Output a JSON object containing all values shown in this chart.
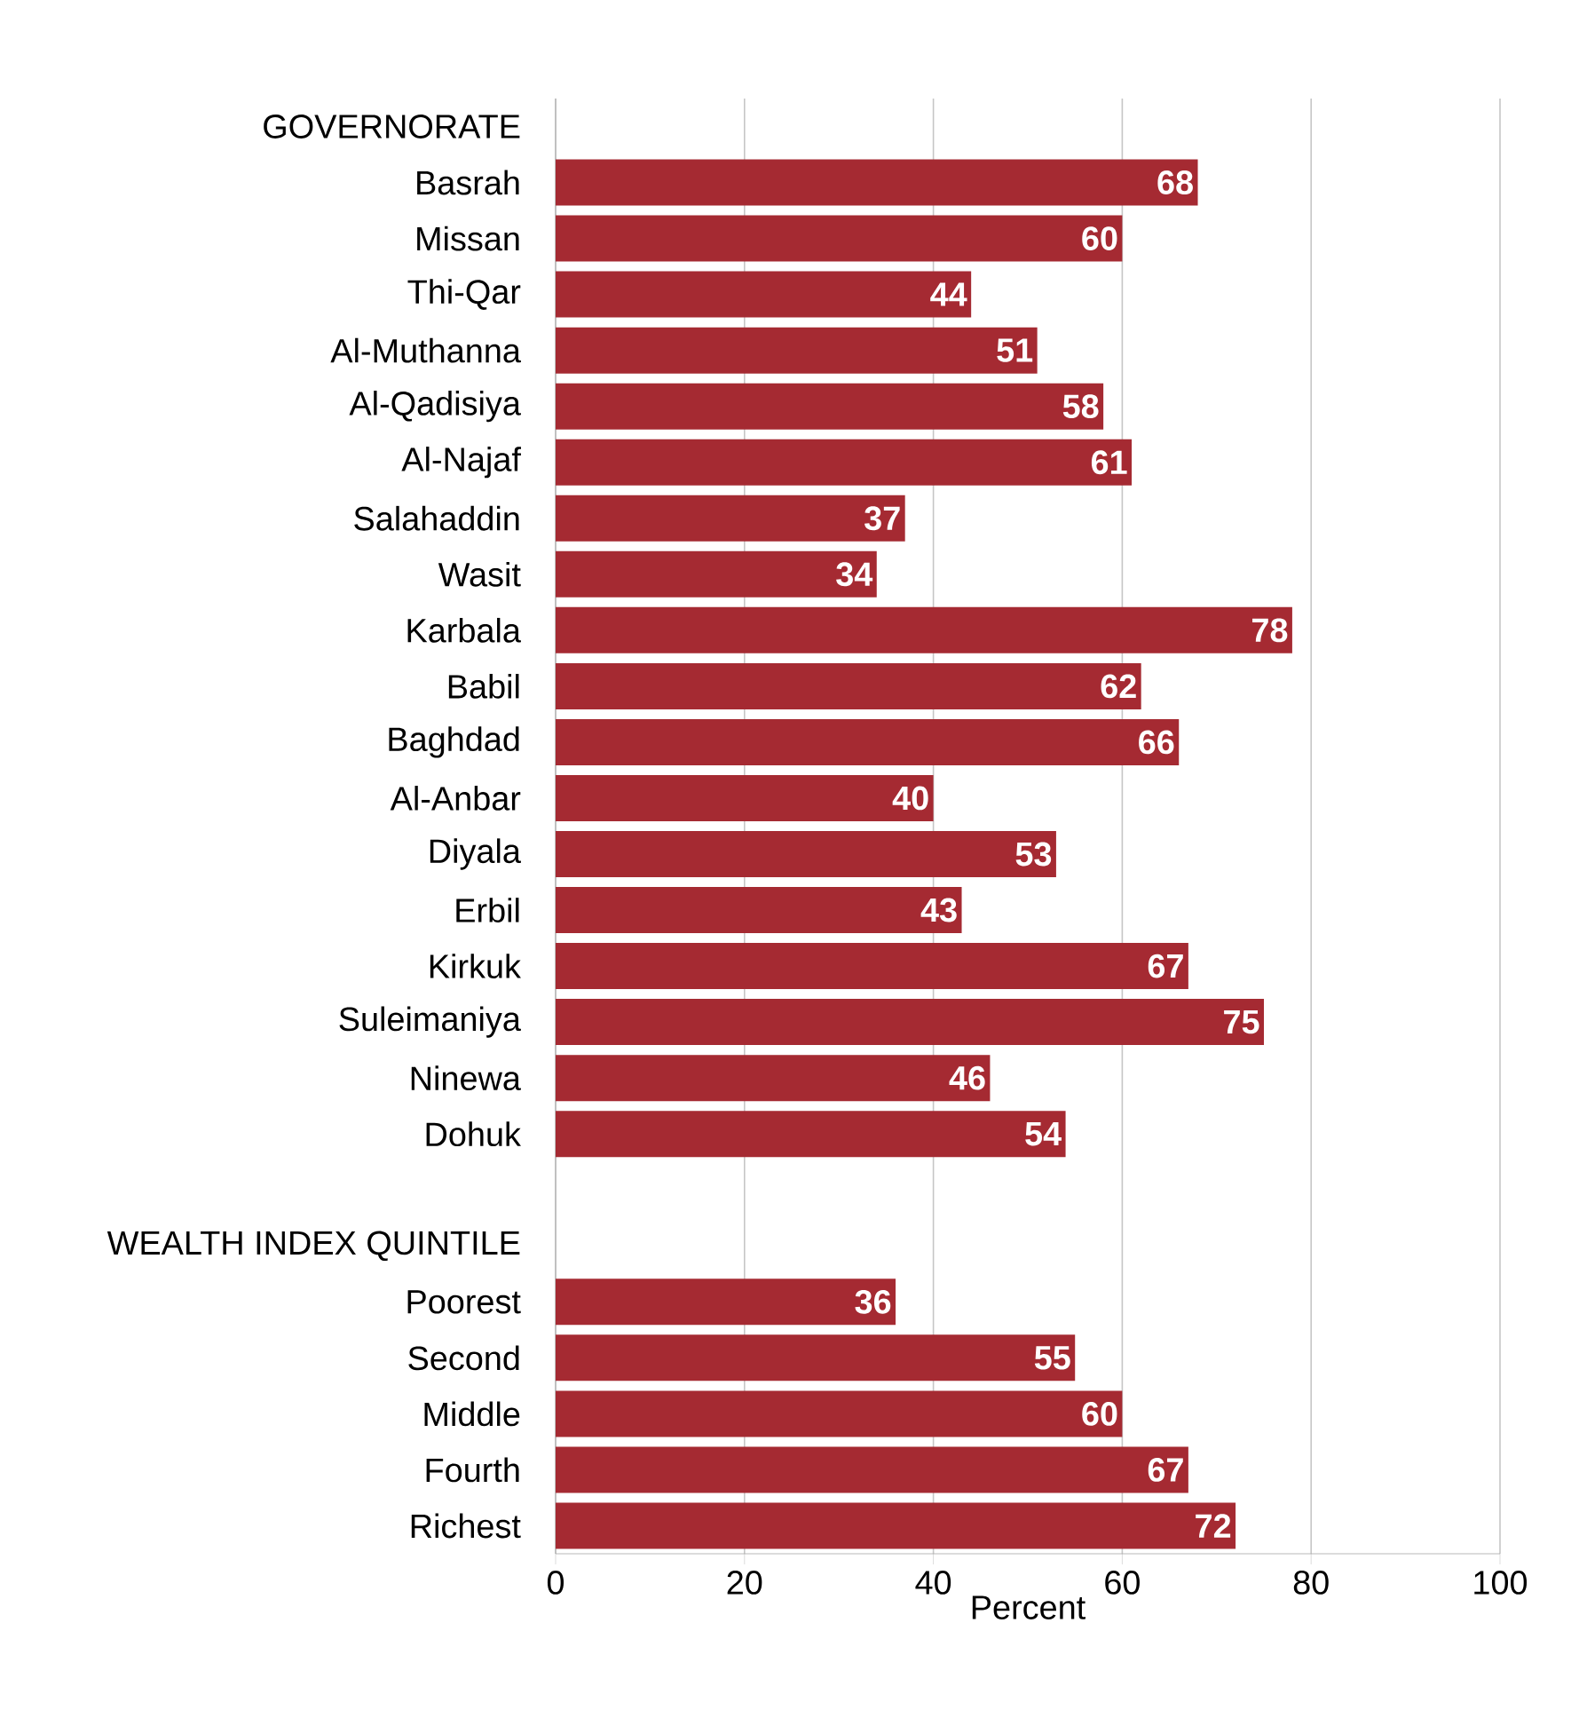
{
  "chart_data": {
    "type": "bar",
    "orientation": "horizontal",
    "xlabel": "Percent",
    "categories": [
      "GOVERNORATE",
      "Basrah",
      "Missan",
      "Thi-Qar",
      "Al-Muthanna",
      "Al-Qadisiya",
      "Al-Najaf",
      "Salahaddin",
      "Wasit",
      "Karbala",
      "Babil",
      "Baghdad",
      "Al-Anbar",
      "Diyala",
      "Erbil",
      "Kirkuk",
      "Suleimaniya",
      "Ninewa",
      "Dohuk",
      null,
      "WEALTH INDEX QUINTILE",
      "Poorest",
      "Second",
      "Middle",
      "Fourth",
      "Richest"
    ],
    "values": [
      null,
      68,
      60,
      44,
      51,
      58,
      61,
      37,
      34,
      78,
      62,
      66,
      40,
      53,
      43,
      67,
      75,
      46,
      54,
      null,
      null,
      36,
      55,
      60,
      67,
      72
    ],
    "color": "#a52a32",
    "xlim": [
      0,
      100
    ],
    "xticks": [
      0,
      20,
      40,
      60,
      80,
      100
    ],
    "grid": "x",
    "data_labels": true
  }
}
